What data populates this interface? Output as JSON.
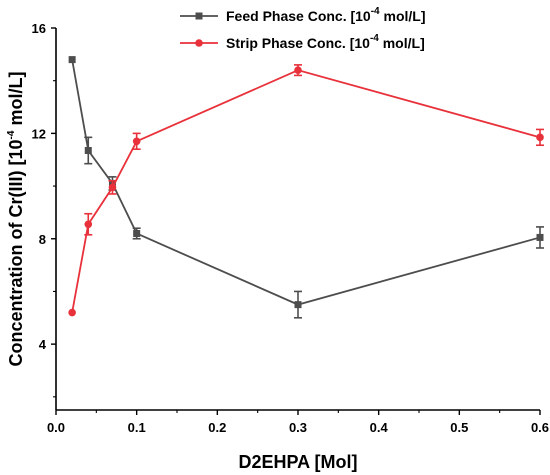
{
  "chart_data": {
    "type": "line",
    "x_unit_label": "D2EHPA [Mol]",
    "ylabel_prefix": "Concentration of Cr(III) [10",
    "ylabel_exp": "-4",
    "ylabel_suffix": " mol/L]",
    "xlim": [
      0.0,
      0.6
    ],
    "ylim": [
      1.5,
      16
    ],
    "x_ticks": [
      "0.0",
      "0.1",
      "0.2",
      "0.3",
      "0.4",
      "0.5",
      "0.6"
    ],
    "y_ticks": [
      "4",
      "8",
      "12",
      "16"
    ],
    "legend_position": "top-right",
    "grid": false,
    "series": [
      {
        "name_prefix": "Feed Phase Conc. [10",
        "name_exp": "-4",
        "name_suffix": " mol/L]",
        "color": "#4d4d4d",
        "marker": "square",
        "x": [
          0.02,
          0.04,
          0.07,
          0.1,
          0.3,
          0.6
        ],
        "y": [
          14.8,
          11.35,
          10.1,
          8.2,
          5.5,
          8.05
        ],
        "err": [
          0,
          0.5,
          0.25,
          0.2,
          0.5,
          0.4
        ]
      },
      {
        "name_prefix": "Strip Phase Conc. [10",
        "name_exp": "-4",
        "name_suffix": " mol/L]",
        "color": "#e8313a",
        "marker": "circle",
        "x": [
          0.02,
          0.04,
          0.07,
          0.1,
          0.3,
          0.6
        ],
        "y": [
          5.2,
          8.55,
          9.95,
          11.7,
          14.4,
          11.85
        ],
        "err": [
          0,
          0.4,
          0.25,
          0.3,
          0.2,
          0.3
        ]
      }
    ]
  }
}
